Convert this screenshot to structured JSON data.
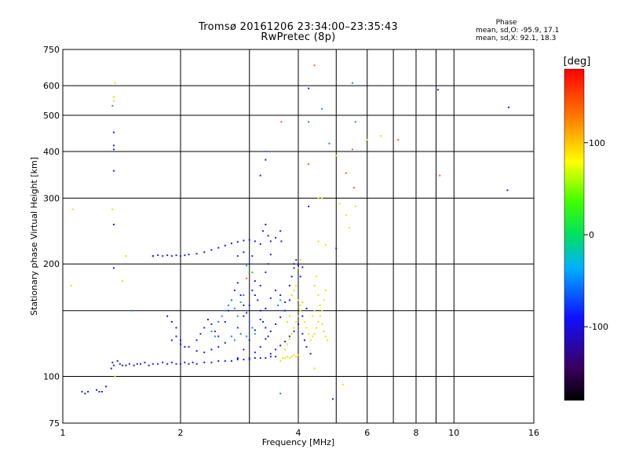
{
  "header": {
    "title_line1": "Tromsø 20161206 23:34:00–23:35:43",
    "title_line2": "RwPretec (8p)"
  },
  "stats": {
    "heading": "Phase",
    "line_o": "mean, sd,O: -95.9, 17.1",
    "line_x": "mean, sd,X:  92.1, 18.3"
  },
  "chart_data": {
    "type": "scatter",
    "xlabel": "Frequency [MHz]",
    "ylabel": "Stationary phase Virtual Height [km]",
    "x_scale": "log",
    "y_scale": "log",
    "xlim": [
      1,
      16
    ],
    "ylim": [
      75,
      750
    ],
    "x_ticks": [
      1,
      2,
      4,
      6,
      8,
      10,
      16
    ],
    "x_ticks_minor": [
      3,
      5,
      7,
      9
    ],
    "y_ticks": [
      75,
      100,
      200,
      300,
      400,
      500,
      600,
      750
    ],
    "y_ticks_minor": [
      150
    ],
    "grid": true,
    "colorbar": {
      "label": "[deg]",
      "range": [
        -180,
        180
      ],
      "ticks": [
        100,
        0,
        -100
      ]
    },
    "series": [
      {
        "description_key": "O",
        "phase_deg": -110,
        "color": "#1a1ae6",
        "points": [
          [
            1.12,
            91
          ],
          [
            1.14,
            90
          ],
          [
            1.16,
            91
          ],
          [
            1.22,
            92
          ],
          [
            1.24,
            91
          ],
          [
            1.26,
            91
          ],
          [
            1.29,
            94
          ],
          [
            1.33,
            105
          ],
          [
            1.34,
            109
          ],
          [
            1.35,
            107
          ],
          [
            1.38,
            110
          ],
          [
            1.4,
            108
          ],
          [
            1.42,
            107
          ],
          [
            1.45,
            107
          ],
          [
            1.48,
            108
          ],
          [
            1.52,
            107
          ],
          [
            1.55,
            108
          ],
          [
            1.58,
            108
          ],
          [
            1.62,
            109
          ],
          [
            1.66,
            107
          ],
          [
            1.7,
            108
          ],
          [
            1.75,
            108
          ],
          [
            1.8,
            109
          ],
          [
            1.85,
            108
          ],
          [
            1.9,
            109
          ],
          [
            1.95,
            108
          ],
          [
            2.0,
            108
          ],
          [
            2.05,
            109
          ],
          [
            2.1,
            108
          ],
          [
            2.15,
            109
          ],
          [
            2.2,
            108
          ],
          [
            2.3,
            109
          ],
          [
            2.4,
            109
          ],
          [
            2.5,
            110
          ],
          [
            2.6,
            110
          ],
          [
            2.7,
            110
          ],
          [
            2.8,
            111
          ],
          [
            2.9,
            111
          ],
          [
            3.0,
            111
          ],
          [
            3.1,
            112
          ],
          [
            3.2,
            112
          ],
          [
            3.3,
            112
          ],
          [
            3.4,
            113
          ],
          [
            3.5,
            113
          ],
          [
            1.7,
            210
          ],
          [
            1.75,
            211
          ],
          [
            1.8,
            210
          ],
          [
            1.85,
            211
          ],
          [
            1.9,
            210
          ],
          [
            1.95,
            211
          ],
          [
            2.0,
            210
          ],
          [
            2.05,
            211
          ],
          [
            2.1,
            212
          ],
          [
            2.2,
            213
          ],
          [
            2.3,
            215
          ],
          [
            2.4,
            218
          ],
          [
            2.5,
            221
          ],
          [
            2.6,
            224
          ],
          [
            2.7,
            227
          ],
          [
            2.8,
            229
          ],
          [
            2.9,
            231
          ],
          [
            3.0,
            232
          ],
          [
            3.1,
            230
          ],
          [
            3.2,
            226
          ],
          [
            3.25,
            245
          ],
          [
            3.3,
            255
          ],
          [
            3.35,
            238
          ],
          [
            3.4,
            230
          ],
          [
            3.5,
            235
          ],
          [
            3.6,
            245
          ],
          [
            3.62,
            230
          ],
          [
            1.85,
            145
          ],
          [
            1.9,
            140
          ],
          [
            1.95,
            135
          ],
          [
            2.0,
            125
          ],
          [
            2.1,
            120
          ],
          [
            2.2,
            117
          ],
          [
            2.3,
            116
          ],
          [
            2.4,
            118
          ],
          [
            2.5,
            120
          ],
          [
            2.6,
            123
          ],
          [
            2.7,
            128
          ],
          [
            2.8,
            135
          ],
          [
            2.9,
            145
          ],
          [
            3.0,
            155
          ],
          [
            3.1,
            165
          ],
          [
            3.2,
            175
          ],
          [
            3.3,
            190
          ],
          [
            3.35,
            200
          ],
          [
            3.4,
            212
          ],
          [
            2.8,
            112
          ],
          [
            2.9,
            118
          ],
          [
            3.0,
            125
          ],
          [
            3.1,
            133
          ],
          [
            3.2,
            142
          ],
          [
            3.3,
            152
          ],
          [
            3.4,
            162
          ],
          [
            3.5,
            170
          ],
          [
            3.6,
            165
          ],
          [
            3.7,
            158
          ],
          [
            3.8,
            175
          ],
          [
            3.85,
            185
          ],
          [
            3.9,
            195
          ],
          [
            3.95,
            205
          ],
          [
            4.0,
            200
          ],
          [
            4.05,
            185
          ],
          [
            3.0,
            112
          ],
          [
            3.1,
            116
          ],
          [
            3.2,
            120
          ],
          [
            3.3,
            126
          ],
          [
            3.4,
            132
          ],
          [
            3.5,
            138
          ],
          [
            3.6,
            144
          ],
          [
            3.7,
            150
          ],
          [
            3.8,
            160
          ],
          [
            4.1,
            130
          ],
          [
            4.15,
            125
          ],
          [
            4.2,
            120
          ],
          [
            4.3,
            115
          ],
          [
            3.4,
            115
          ],
          [
            3.5,
            118
          ],
          [
            3.6,
            121
          ],
          [
            3.7,
            124
          ],
          [
            3.8,
            128
          ],
          [
            3.9,
            132
          ],
          [
            4.0,
            138
          ],
          [
            4.1,
            145
          ],
          [
            4.2,
            152
          ],
          [
            2.6,
            140
          ],
          [
            2.65,
            150
          ],
          [
            2.7,
            160
          ],
          [
            2.75,
            170
          ],
          [
            2.8,
            178
          ],
          [
            2.85,
            165
          ],
          [
            2.9,
            155
          ],
          [
            2.95,
            148
          ],
          [
            3.05,
            170
          ],
          [
            3.1,
            180
          ],
          [
            3.15,
            160
          ],
          [
            3.2,
            150
          ],
          [
            3.25,
            140
          ],
          [
            3.3,
            135
          ],
          [
            3.35,
            128
          ],
          [
            2.2,
            125
          ],
          [
            2.25,
            130
          ],
          [
            2.3,
            135
          ],
          [
            2.35,
            142
          ],
          [
            2.4,
            138
          ],
          [
            2.45,
            132
          ],
          [
            2.5,
            128
          ],
          [
            1.9,
            125
          ],
          [
            1.95,
            128
          ],
          [
            2.0,
            122
          ],
          [
            2.05,
            120
          ],
          [
            1.35,
            255
          ],
          [
            1.35,
            355
          ],
          [
            1.35,
            405
          ],
          [
            1.35,
            415
          ],
          [
            1.35,
            450
          ],
          [
            1.35,
            195
          ],
          [
            1.7,
            210
          ],
          [
            3.2,
            345
          ],
          [
            3.3,
            380
          ],
          [
            3.9,
            200
          ],
          [
            4.0,
            198
          ],
          [
            4.1,
            196
          ],
          [
            4.25,
            285
          ],
          [
            4.25,
            590
          ],
          [
            4.9,
            87
          ],
          [
            5.0,
            220
          ],
          [
            9.1,
            585
          ],
          [
            13.7,
            315
          ],
          [
            13.8,
            525
          ],
          [
            2.8,
            210
          ],
          [
            2.9,
            215
          ],
          [
            3.05,
            210
          ]
        ]
      },
      {
        "description_key": "mid",
        "phase_deg": -60,
        "color": "#1e88e8",
        "points": [
          [
            1.34,
            530
          ],
          [
            1.5,
            150
          ],
          [
            2.5,
            140
          ],
          [
            2.55,
            145
          ],
          [
            2.6,
            150
          ],
          [
            2.65,
            155
          ],
          [
            2.7,
            160
          ],
          [
            2.75,
            152
          ],
          [
            2.8,
            145
          ],
          [
            2.85,
            158
          ],
          [
            2.9,
            165
          ],
          [
            2.95,
            150
          ],
          [
            3.0,
            140
          ],
          [
            3.05,
            135
          ],
          [
            3.1,
            130
          ],
          [
            2.4,
            132
          ],
          [
            2.45,
            128
          ],
          [
            2.7,
            128
          ],
          [
            2.75,
            125
          ],
          [
            2.85,
            130
          ],
          [
            2.95,
            128
          ],
          [
            3.3,
            400
          ],
          [
            3.55,
            155
          ],
          [
            3.6,
            160
          ],
          [
            3.65,
            150
          ],
          [
            4.25,
            480
          ],
          [
            4.6,
            520
          ],
          [
            4.8,
            420
          ],
          [
            5.5,
            610
          ],
          [
            5.6,
            480
          ],
          [
            3.6,
            90
          ],
          [
            2.95,
            198
          ],
          [
            3.0,
            205
          ]
        ]
      },
      {
        "description_key": "X",
        "phase_deg": 95,
        "color": "#f0e000",
        "points": [
          [
            1.06,
            280
          ],
          [
            1.36,
            610
          ],
          [
            1.35,
            560
          ],
          [
            1.35,
            545
          ],
          [
            1.34,
            280
          ],
          [
            1.36,
            100
          ],
          [
            1.45,
            210
          ],
          [
            1.42,
            180
          ],
          [
            3.6,
            110
          ],
          [
            3.65,
            112
          ],
          [
            3.7,
            112
          ],
          [
            3.75,
            113
          ],
          [
            3.8,
            112
          ],
          [
            3.85,
            113
          ],
          [
            3.9,
            114
          ],
          [
            3.95,
            113
          ],
          [
            4.0,
            114
          ],
          [
            3.7,
            118
          ],
          [
            3.75,
            122
          ],
          [
            3.8,
            126
          ],
          [
            3.85,
            130
          ],
          [
            3.9,
            135
          ],
          [
            3.95,
            140
          ],
          [
            4.0,
            145
          ],
          [
            4.05,
            150
          ],
          [
            4.1,
            158
          ],
          [
            3.85,
            165
          ],
          [
            3.9,
            170
          ],
          [
            3.95,
            175
          ],
          [
            4.0,
            160
          ],
          [
            4.05,
            155
          ],
          [
            3.8,
            145
          ],
          [
            3.75,
            140
          ],
          [
            4.4,
            130
          ],
          [
            4.45,
            135
          ],
          [
            4.5,
            140
          ],
          [
            4.55,
            145
          ],
          [
            4.6,
            150
          ],
          [
            4.65,
            160
          ],
          [
            4.7,
            170
          ],
          [
            4.4,
            175
          ],
          [
            4.45,
            185
          ],
          [
            4.5,
            165
          ],
          [
            4.55,
            155
          ],
          [
            4.6,
            138
          ],
          [
            4.65,
            132
          ],
          [
            4.7,
            128
          ],
          [
            4.75,
            125
          ],
          [
            4.3,
            125
          ],
          [
            4.35,
            128
          ],
          [
            4.15,
            140
          ],
          [
            4.2,
            135
          ],
          [
            4.25,
            130
          ],
          [
            4.35,
            145
          ],
          [
            4.4,
            150
          ],
          [
            4.4,
            105
          ],
          [
            4.5,
            300
          ],
          [
            4.6,
            300
          ],
          [
            5.0,
            390
          ],
          [
            5.1,
            290
          ],
          [
            5.2,
            95
          ],
          [
            5.3,
            270
          ],
          [
            5.4,
            250
          ],
          [
            5.6,
            285
          ],
          [
            6.0,
            430
          ],
          [
            6.5,
            440
          ],
          [
            4.5,
            230
          ],
          [
            4.7,
            225
          ],
          [
            1.05,
            175
          ],
          [
            4.0,
            195
          ],
          [
            4.05,
            205
          ]
        ]
      },
      {
        "description_key": "high",
        "phase_deg": 150,
        "color": "#ff6010",
        "points": [
          [
            3.62,
            480
          ],
          [
            4.25,
            370
          ],
          [
            5.3,
            350
          ],
          [
            5.55,
            320
          ],
          [
            5.5,
            405
          ],
          [
            7.2,
            430
          ],
          [
            9.2,
            345
          ],
          [
            4.4,
            680
          ],
          [
            2.95,
            183
          ]
        ]
      },
      {
        "description_key": "green",
        "phase_deg": 40,
        "color": "#20c020",
        "points": [
          [
            3.0,
            195
          ],
          [
            3.05,
            190
          ]
        ]
      }
    ]
  }
}
